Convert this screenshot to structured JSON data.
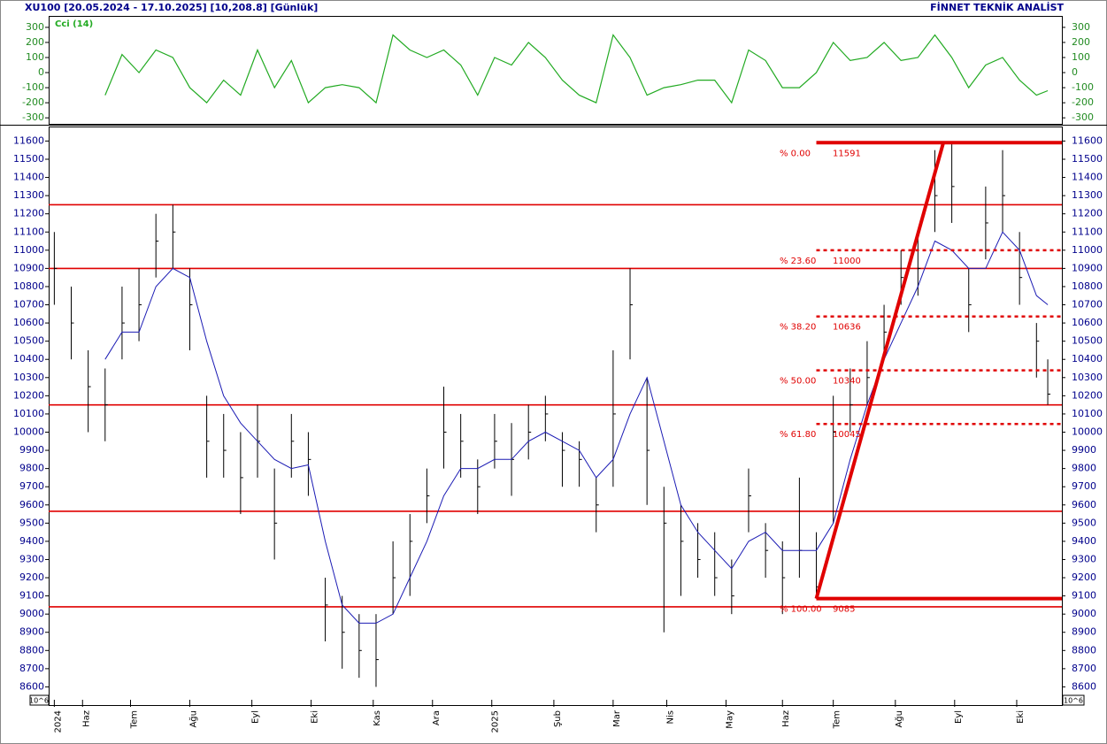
{
  "header": {
    "left": "XU100  [20.05.2024 - 17.10.2025]  [10,208.8]  [Günlük]",
    "right": "FİNNET TEKNİK ANALİST",
    "scale_label": "10^6"
  },
  "chart_data": [
    {
      "type": "line",
      "axis_color": "#228b22",
      "x": [
        0,
        6,
        12,
        18,
        24,
        30,
        36,
        42,
        48,
        54,
        60,
        66,
        72,
        78,
        84,
        90,
        96,
        102,
        108,
        114,
        120,
        126,
        132,
        138,
        144,
        150,
        156,
        162,
        168,
        174,
        180,
        186,
        192,
        198,
        204,
        210,
        216,
        222,
        228,
        234,
        240,
        246,
        252,
        258,
        264,
        270,
        276,
        282,
        288,
        294,
        300,
        306,
        312,
        318,
        324,
        330,
        336,
        342,
        348,
        352
      ],
      "series": [
        {
          "name": "Cci (14)",
          "color": "#22aa22",
          "values": [
            null,
            null,
            null,
            -150,
            120,
            0,
            150,
            100,
            -100,
            -200,
            -50,
            -150,
            150,
            -100,
            80,
            -200,
            -100,
            -80,
            -100,
            -200,
            250,
            150,
            100,
            150,
            50,
            -150,
            100,
            50,
            200,
            100,
            -50,
            -150,
            -200,
            250,
            100,
            -150,
            -100,
            -80,
            -50,
            -50,
            -200,
            150,
            80,
            -100,
            -100,
            0,
            200,
            80,
            100,
            200,
            80,
            100,
            250,
            100,
            -100,
            50,
            100,
            -50,
            -150,
            -120
          ]
        }
      ],
      "xlim": [
        -2,
        357
      ],
      "ylim": [
        -340,
        370
      ],
      "yticks": [
        -300,
        -200,
        -100,
        0,
        100,
        200,
        300
      ]
    },
    {
      "type": "hlc",
      "axis_color": "#00008b",
      "color": "#000000",
      "x": [
        0,
        6,
        12,
        18,
        24,
        30,
        36,
        42,
        48,
        54,
        60,
        66,
        72,
        78,
        84,
        90,
        96,
        102,
        108,
        114,
        120,
        126,
        132,
        138,
        144,
        150,
        156,
        162,
        168,
        174,
        180,
        186,
        192,
        198,
        204,
        210,
        216,
        222,
        228,
        234,
        240,
        246,
        252,
        258,
        264,
        270,
        276,
        282,
        288,
        294,
        300,
        306,
        312,
        318,
        324,
        330,
        336,
        342,
        348,
        352
      ],
      "high": [
        11100,
        10800,
        10450,
        10350,
        10800,
        10900,
        11200,
        11250,
        10900,
        10200,
        10100,
        10000,
        10150,
        9800,
        10100,
        10000,
        9200,
        9100,
        9000,
        9000,
        9400,
        9550,
        9800,
        10250,
        10100,
        9850,
        10100,
        10050,
        10150,
        10200,
        10000,
        9950,
        9750,
        10450,
        10900,
        10300,
        9700,
        9600,
        9500,
        9450,
        9300,
        9800,
        9500,
        9400,
        9750,
        9450,
        10200,
        10350,
        10500,
        10700,
        11000,
        11100,
        11550,
        11591,
        10900,
        11350,
        11550,
        11100,
        10600,
        10400
      ],
      "low": [
        10700,
        10400,
        10000,
        9950,
        10400,
        10500,
        10850,
        10900,
        10450,
        9750,
        9750,
        9550,
        9750,
        9300,
        9750,
        9650,
        8850,
        8700,
        8650,
        8600,
        9000,
        9100,
        9500,
        9800,
        9750,
        9550,
        9800,
        9650,
        9850,
        9950,
        9700,
        9700,
        9450,
        9700,
        10400,
        9600,
        8900,
        9100,
        9200,
        9100,
        9000,
        9450,
        9200,
        9000,
        9200,
        9085,
        9500,
        10000,
        10150,
        10400,
        10700,
        10750,
        11100,
        11150,
        10550,
        10950,
        11100,
        10700,
        10300,
        10150
      ],
      "close": [
        10900,
        10600,
        10250,
        10150,
        10600,
        10700,
        11050,
        11100,
        10700,
        9950,
        9900,
        9750,
        9950,
        9500,
        9950,
        9850,
        9050,
        8900,
        8800,
        8750,
        9200,
        9400,
        9650,
        10000,
        9950,
        9700,
        9950,
        9850,
        10000,
        10100,
        9900,
        9850,
        9600,
        10100,
        10700,
        9900,
        9500,
        9400,
        9300,
        9200,
        9100,
        9650,
        9350,
        9200,
        9350,
        9150,
        10000,
        10150,
        10300,
        10550,
        10850,
        10900,
        11300,
        11350,
        10700,
        11150,
        11300,
        10850,
        10500,
        10209
      ],
      "ma": {
        "color": "#1c1cb4",
        "values": [
          null,
          null,
          null,
          10400,
          10550,
          10550,
          10800,
          10900,
          10850,
          10500,
          10200,
          10050,
          9950,
          9850,
          9800,
          9820,
          9400,
          9050,
          8950,
          8950,
          9000,
          9200,
          9400,
          9650,
          9800,
          9800,
          9850,
          9850,
          9950,
          10000,
          9950,
          9900,
          9750,
          9850,
          10100,
          10300,
          9950,
          9600,
          9450,
          9350,
          9250,
          9400,
          9450,
          9350,
          9350,
          9350,
          9500,
          9850,
          10150,
          10400,
          10600,
          10800,
          11050,
          11000,
          10900,
          10900,
          11100,
          11000,
          10750,
          10700
        ]
      },
      "hlines": [
        11250,
        10900,
        10150,
        9565,
        9040
      ],
      "line_color": "#e00000",
      "trend_line": {
        "x": [
          270,
          315
        ],
        "values": [
          9085,
          11591
        ]
      },
      "fib_start": 270,
      "fib_levels": [
        {
          "label": "% 0.00",
          "value": 11591,
          "style": "solid"
        },
        {
          "label": "% 23.60",
          "value": 11000,
          "style": "dotted"
        },
        {
          "label": "% 38.20",
          "value": 10636,
          "style": "dotted"
        },
        {
          "label": "% 50.00",
          "value": 10340,
          "style": "dotted"
        },
        {
          "label": "% 61.80",
          "value": 10045,
          "style": "dotted"
        },
        {
          "label": "% 100.00",
          "value": 9085,
          "style": "solid"
        }
      ],
      "xlim": [
        -2,
        357
      ],
      "ylim": [
        8500,
        11675
      ],
      "yticks": [
        8600,
        8700,
        8800,
        8900,
        9000,
        9100,
        9200,
        9300,
        9400,
        9500,
        9600,
        9700,
        9800,
        9900,
        10000,
        10100,
        10200,
        10300,
        10400,
        10500,
        10600,
        10700,
        10800,
        10900,
        11000,
        11100,
        11200,
        11300,
        11400,
        11500,
        11600
      ],
      "xticks": [
        {
          "value": 0,
          "label": "2024"
        },
        {
          "value": 10,
          "label": "Haz"
        },
        {
          "value": 27,
          "label": "Tem"
        },
        {
          "value": 48,
          "label": "Ağu"
        },
        {
          "value": 70,
          "label": "Eyl"
        },
        {
          "value": 91,
          "label": "Eki"
        },
        {
          "value": 113,
          "label": "Kas"
        },
        {
          "value": 134,
          "label": "Ara"
        },
        {
          "value": 155,
          "label": "2025"
        },
        {
          "value": 177,
          "label": "Şub"
        },
        {
          "value": 198,
          "label": "Mar"
        },
        {
          "value": 217,
          "label": "Nis"
        },
        {
          "value": 238,
          "label": "May"
        },
        {
          "value": 258,
          "label": "Haz"
        },
        {
          "value": 276,
          "label": "Tem"
        },
        {
          "value": 298,
          "label": "Ağu"
        },
        {
          "value": 319,
          "label": "Eyl"
        },
        {
          "value": 341,
          "label": "Eki"
        }
      ]
    }
  ]
}
